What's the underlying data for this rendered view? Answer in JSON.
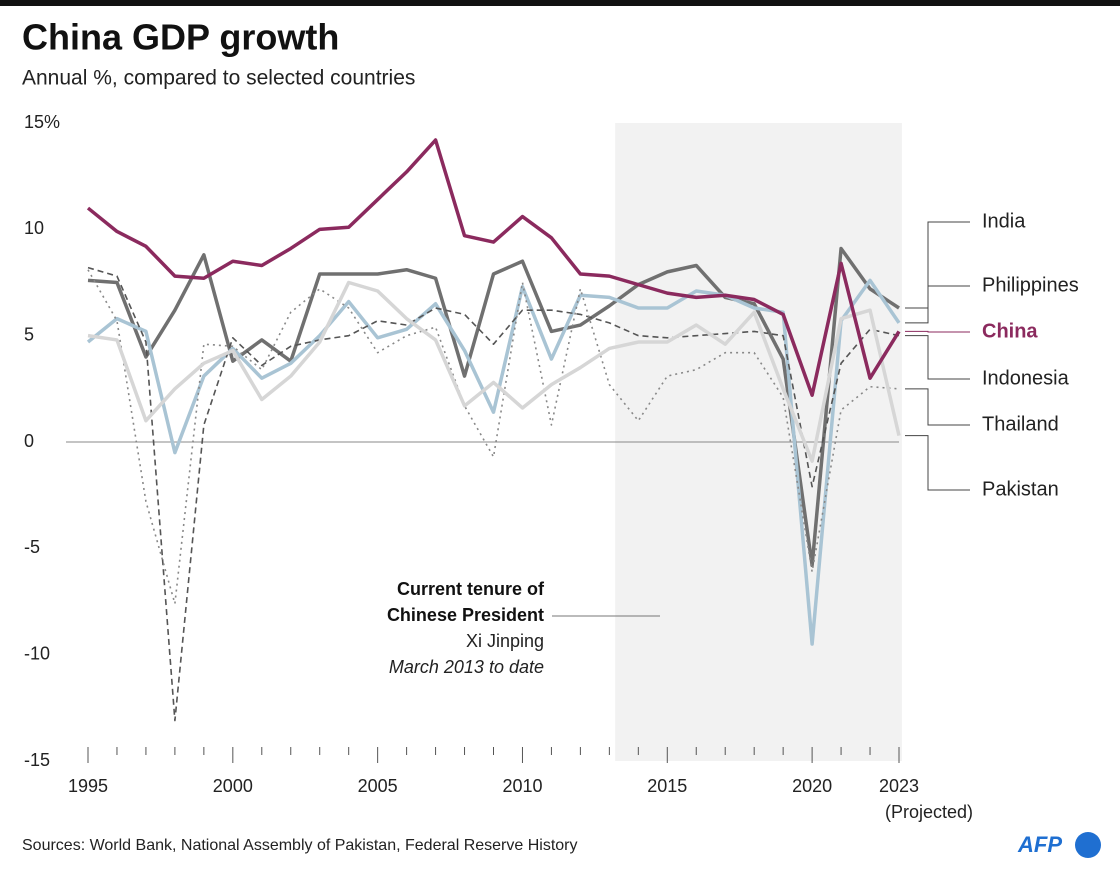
{
  "chart_data": {
    "type": "line",
    "title": "China GDP growth",
    "subtitle": "Annual %, compared to selected countries",
    "x": [
      1995,
      1996,
      1997,
      1998,
      1999,
      2000,
      2001,
      2002,
      2003,
      2004,
      2005,
      2006,
      2007,
      2008,
      2009,
      2010,
      2011,
      2012,
      2013,
      2014,
      2015,
      2016,
      2017,
      2018,
      2019,
      2020,
      2021,
      2022,
      2023
    ],
    "xlim": [
      1995,
      2023
    ],
    "xticks": [
      1995,
      2000,
      2005,
      2010,
      2015,
      2020,
      2023
    ],
    "x_note": "(Projected)",
    "ylim": [
      -15,
      15
    ],
    "yticks": [
      -15,
      -10,
      -5,
      0,
      5,
      10,
      {
        "value": 15,
        "label": "15%"
      }
    ],
    "zero_line": true,
    "highlight": {
      "from": 2013.2,
      "to": 2023.1,
      "color": "#f2f2f2",
      "lines": [
        "Current tenure of",
        "Chinese President",
        "Xi Jinping",
        "March 2013 to date"
      ]
    },
    "series": [
      {
        "name": "India",
        "color": "#707070",
        "style": "solid",
        "values": [
          7.6,
          7.5,
          4.0,
          6.2,
          8.8,
          3.8,
          4.8,
          3.8,
          7.9,
          7.9,
          7.9,
          8.1,
          7.7,
          3.1,
          7.9,
          8.5,
          5.2,
          5.5,
          6.4,
          7.4,
          8.0,
          8.3,
          6.8,
          6.5,
          3.9,
          -5.8,
          9.1,
          7.2,
          6.3
        ]
      },
      {
        "name": "Philippines",
        "color": "#a9c4d4",
        "style": "solid",
        "values": [
          4.7,
          5.8,
          5.2,
          -0.5,
          3.1,
          4.4,
          3.0,
          3.7,
          5.0,
          6.6,
          4.9,
          5.3,
          6.5,
          4.3,
          1.4,
          7.3,
          3.9,
          6.9,
          6.8,
          6.3,
          6.3,
          7.1,
          6.9,
          6.3,
          6.1,
          -9.5,
          5.7,
          7.6,
          5.6
        ]
      },
      {
        "name": "China",
        "color": "#8b2a5e",
        "style": "solid",
        "values": [
          11.0,
          9.9,
          9.2,
          7.8,
          7.7,
          8.5,
          8.3,
          9.1,
          10.0,
          10.1,
          11.4,
          12.7,
          14.2,
          9.7,
          9.4,
          10.6,
          9.6,
          7.9,
          7.8,
          7.4,
          7.0,
          6.8,
          6.9,
          6.7,
          6.0,
          2.2,
          8.4,
          3.0,
          5.2
        ]
      },
      {
        "name": "Indonesia",
        "color": "#555555",
        "style": "dashed",
        "values": [
          8.2,
          7.8,
          4.7,
          -13.1,
          0.8,
          4.9,
          3.6,
          4.5,
          4.8,
          5.0,
          5.7,
          5.5,
          6.3,
          6.0,
          4.6,
          6.2,
          6.2,
          6.0,
          5.6,
          5.0,
          4.9,
          5.0,
          5.1,
          5.2,
          5.0,
          -2.1,
          3.7,
          5.3,
          5.0
        ]
      },
      {
        "name": "Thailand",
        "color": "#888888",
        "style": "dotted",
        "values": [
          8.1,
          5.7,
          -2.8,
          -7.6,
          4.6,
          4.5,
          3.4,
          6.1,
          7.2,
          6.3,
          4.2,
          5.0,
          5.4,
          1.7,
          -0.7,
          7.5,
          0.8,
          7.2,
          2.7,
          1.0,
          3.1,
          3.4,
          4.2,
          4.2,
          2.1,
          -6.1,
          1.5,
          2.6,
          2.5
        ]
      },
      {
        "name": "Pakistan",
        "color": "#d6d6d6",
        "style": "solid",
        "values": [
          5.0,
          4.8,
          1.0,
          2.5,
          3.7,
          4.3,
          2.0,
          3.1,
          4.7,
          7.5,
          7.1,
          5.8,
          4.8,
          1.7,
          2.8,
          1.6,
          2.7,
          3.5,
          4.4,
          4.7,
          4.7,
          5.5,
          4.6,
          6.1,
          2.5,
          -0.9,
          5.8,
          6.2,
          0.3
        ]
      }
    ],
    "highlight_series": "China",
    "source": "Sources: World Bank, National Assembly of Pakistan, Federal Reserve History",
    "logo": "AFP"
  }
}
